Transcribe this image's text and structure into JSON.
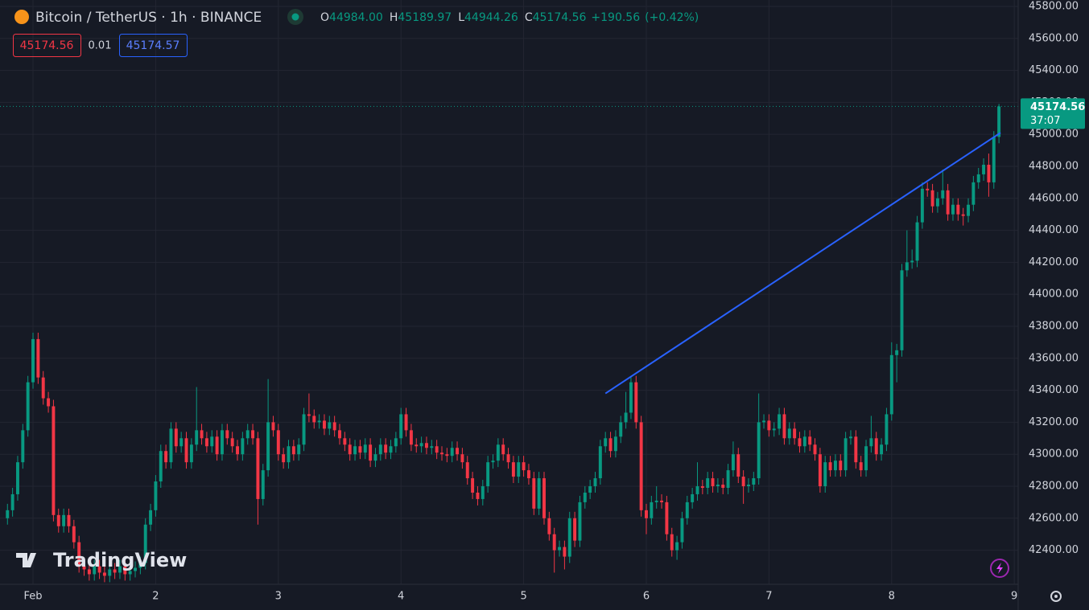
{
  "chart_data": {
    "type": "candlestick",
    "title": "Bitcoin / TetherUS · 1h · BINANCE",
    "legend": {
      "labels": [
        "O",
        "H",
        "L",
        "C"
      ],
      "values": [
        "44984.00",
        "45189.97",
        "44944.26",
        "45174.56"
      ],
      "change": "+190.56",
      "change_pct": "(+0.42%)"
    },
    "sell_price": "45174.56",
    "spread": "0.01",
    "buy_price": "45174.57",
    "countdown": "37:07",
    "watermark": "TradingView",
    "up_color": "#089981",
    "down_color": "#f23645",
    "trend_color": "#2962ff",
    "grid": true,
    "xlim": [
      -6.46,
      192.76
    ],
    "ylim": [
      42187,
      45840
    ],
    "xticks": [
      {
        "value": 0,
        "label": "Feb"
      },
      {
        "value": 24,
        "label": "2"
      },
      {
        "value": 48,
        "label": "3"
      },
      {
        "value": 72,
        "label": "4"
      },
      {
        "value": 96,
        "label": "5"
      },
      {
        "value": 120,
        "label": "6"
      },
      {
        "value": 144,
        "label": "7"
      },
      {
        "value": 168,
        "label": "8"
      },
      {
        "value": 192,
        "label": "9"
      }
    ],
    "yticks": [
      {
        "value": 45800,
        "label": "45800.00"
      },
      {
        "value": 45600,
        "label": "45600.00"
      },
      {
        "value": 45400,
        "label": "45400.00"
      },
      {
        "value": 45200,
        "label": "45200.00"
      },
      {
        "value": 45000,
        "label": "45000.00"
      },
      {
        "value": 44800,
        "label": "44800.00"
      },
      {
        "value": 44600,
        "label": "44600.00"
      },
      {
        "value": 44400,
        "label": "44400.00"
      },
      {
        "value": 44200,
        "label": "44200.00"
      },
      {
        "value": 44000,
        "label": "44000.00"
      },
      {
        "value": 43800,
        "label": "43800.00"
      },
      {
        "value": 43600,
        "label": "43600.00"
      },
      {
        "value": 43400,
        "label": "43400.00"
      },
      {
        "value": 43200,
        "label": "43200.00"
      },
      {
        "value": 43000,
        "label": "43000.00"
      },
      {
        "value": 42800,
        "label": "42800.00"
      },
      {
        "value": 42600,
        "label": "42600.00"
      },
      {
        "value": 42400,
        "label": "42400.00"
      }
    ],
    "trendline": {
      "x": [
        112,
        189.3
      ],
      "y": [
        43380,
        45010
      ]
    },
    "x": [
      -5,
      -4,
      -3,
      -2,
      -1,
      0,
      1,
      2,
      3,
      4,
      5,
      6,
      7,
      8,
      9,
      10,
      11,
      12,
      13,
      14,
      15,
      16,
      17,
      18,
      19,
      20,
      21,
      22,
      23,
      24,
      25,
      26,
      27,
      28,
      29,
      30,
      31,
      32,
      33,
      34,
      35,
      36,
      37,
      38,
      39,
      40,
      41,
      42,
      43,
      44,
      45,
      46,
      47,
      48,
      49,
      50,
      51,
      52,
      53,
      54,
      55,
      56,
      57,
      58,
      59,
      60,
      61,
      62,
      63,
      64,
      65,
      66,
      67,
      68,
      69,
      70,
      71,
      72,
      73,
      74,
      75,
      76,
      77,
      78,
      79,
      80,
      81,
      82,
      83,
      84,
      85,
      86,
      87,
      88,
      89,
      90,
      91,
      92,
      93,
      94,
      95,
      96,
      97,
      98,
      99,
      100,
      101,
      102,
      103,
      104,
      105,
      106,
      107,
      108,
      109,
      110,
      111,
      112,
      113,
      114,
      115,
      116,
      117,
      118,
      119,
      120,
      121,
      122,
      123,
      124,
      125,
      126,
      127,
      128,
      129,
      130,
      131,
      132,
      133,
      134,
      135,
      136,
      137,
      138,
      139,
      140,
      141,
      142,
      143,
      144,
      145,
      146,
      147,
      148,
      149,
      150,
      151,
      152,
      153,
      154,
      155,
      156,
      157,
      158,
      159,
      160,
      161,
      162,
      163,
      164,
      165,
      166,
      167,
      168,
      169,
      170,
      171,
      172,
      173,
      174,
      175,
      176,
      177,
      178,
      179,
      180,
      181,
      182,
      183,
      184,
      185,
      186,
      187,
      188,
      189
    ],
    "open": [
      42600,
      42650,
      42750,
      42950,
      43150,
      43450,
      43720,
      43480,
      43350,
      43300,
      42620,
      42550,
      42620,
      42550,
      42450,
      42300,
      42280,
      42250,
      42300,
      42260,
      42240,
      42280,
      42260,
      42300,
      42250,
      42270,
      42290,
      42320,
      42560,
      42650,
      42830,
      43020,
      42950,
      43160,
      43050,
      43100,
      42950,
      43060,
      43150,
      43100,
      43050,
      43110,
      43000,
      43150,
      43100,
      43050,
      43000,
      43100,
      43150,
      43100,
      42720,
      42900,
      43200,
      43150,
      43000,
      42950,
      43050,
      43000,
      43060,
      43250,
      43240,
      43200,
      43210,
      43160,
      43200,
      43150,
      43100,
      43060,
      43000,
      43050,
      43010,
      43060,
      42960,
      43000,
      43060,
      43010,
      43050,
      43100,
      43250,
      43150,
      43060,
      43050,
      43070,
      43040,
      43050,
      43010,
      43000,
      42990,
      43040,
      43000,
      42950,
      42850,
      42760,
      42720,
      42800,
      42950,
      42960,
      43060,
      43000,
      42950,
      42860,
      42950,
      42900,
      42850,
      42660,
      42850,
      42600,
      42500,
      42400,
      42420,
      42360,
      42600,
      42460,
      42700,
      42760,
      42800,
      42850,
      43050,
      43100,
      43020,
      43110,
      43200,
      43260,
      43450,
      43200,
      42650,
      42600,
      42700,
      42710,
      42700,
      42500,
      42400,
      42450,
      42600,
      42700,
      42750,
      42800,
      42790,
      42850,
      42800,
      42810,
      42790,
      42900,
      43000,
      42860,
      42800,
      42810,
      42850,
      43200,
      43210,
      43150,
      43160,
      43250,
      43100,
      43160,
      43100,
      43050,
      43110,
      43060,
      43000,
      42800,
      42950,
      42900,
      42960,
      42900,
      43100,
      43110,
      42950,
      42900,
      43050,
      43100,
      43000,
      43060,
      43250,
      43620,
      43650,
      44150,
      44200,
      44210,
      44450,
      44660,
      44650,
      44550,
      44600,
      44650,
      44500,
      44560,
      44500,
      44490,
      44560,
      44700,
      44750,
      44810,
      44700,
      44984
    ],
    "high": [
      42690,
      42790,
      42990,
      43190,
      43490,
      43760,
      43760,
      43520,
      43390,
      43340,
      42660,
      42660,
      42660,
      42590,
      42490,
      42340,
      42320,
      42340,
      42340,
      42300,
      42320,
      42320,
      42340,
      42340,
      42310,
      42330,
      42360,
      42600,
      42690,
      42870,
      43060,
      43060,
      43200,
      43200,
      43140,
      43140,
      43100,
      43420,
      43190,
      43140,
      43150,
      43150,
      43190,
      43190,
      43140,
      43090,
      43140,
      43190,
      43190,
      43140,
      42940,
      43470,
      43240,
      43190,
      43040,
      43090,
      43090,
      43100,
      43290,
      43380,
      43280,
      43250,
      43250,
      43240,
      43240,
      43190,
      43140,
      43100,
      43090,
      43090,
      43100,
      43100,
      43040,
      43100,
      43100,
      43090,
      43140,
      43290,
      43290,
      43190,
      43100,
      43110,
      43110,
      43090,
      43090,
      43050,
      43040,
      43080,
      43080,
      43040,
      42990,
      42890,
      42800,
      42840,
      42990,
      43000,
      43100,
      43100,
      43040,
      42990,
      42990,
      42990,
      42940,
      42890,
      42890,
      42890,
      42640,
      42540,
      42460,
      42460,
      42640,
      42640,
      42740,
      42800,
      42840,
      42890,
      43090,
      43140,
      43140,
      43150,
      43240,
      43390,
      43490,
      43490,
      43240,
      42690,
      42740,
      42800,
      42750,
      42740,
      42540,
      42490,
      42640,
      42740,
      42790,
      42950,
      42840,
      42890,
      42890,
      42850,
      42850,
      42940,
      43080,
      43040,
      42900,
      42850,
      42890,
      43380,
      43250,
      43250,
      43200,
      43290,
      43290,
      43200,
      43200,
      43140,
      43150,
      43150,
      43100,
      43040,
      42990,
      42990,
      43000,
      43000,
      43140,
      43150,
      43150,
      42990,
      43090,
      43240,
      43140,
      43100,
      43290,
      43700,
      43690,
      44190,
      44400,
      44280,
      44490,
      44700,
      44700,
      44690,
      44640,
      44780,
      44690,
      44600,
      44600,
      44540,
      44600,
      44740,
      44790,
      44850,
      44880,
      45020,
      45189.97
    ],
    "low": [
      42560,
      42610,
      42710,
      42910,
      43110,
      43410,
      43440,
      43310,
      43260,
      42580,
      42510,
      42510,
      42510,
      42410,
      42260,
      42240,
      42210,
      42210,
      42220,
      42200,
      42200,
      42220,
      42220,
      42210,
      42210,
      42230,
      42250,
      42280,
      42520,
      42610,
      42790,
      42910,
      42910,
      43010,
      43010,
      42910,
      42910,
      43020,
      43060,
      43010,
      43010,
      42960,
      42960,
      43060,
      43010,
      42960,
      42960,
      43060,
      43060,
      42560,
      42680,
      42860,
      43110,
      42960,
      42910,
      42910,
      42960,
      42960,
      43020,
      43200,
      43160,
      43160,
      43120,
      43120,
      43110,
      43060,
      43020,
      42960,
      42960,
      42970,
      42970,
      42920,
      42920,
      42960,
      42970,
      42970,
      43010,
      43060,
      43110,
      43020,
      43010,
      43010,
      43000,
      43000,
      42970,
      42960,
      42950,
      42950,
      42960,
      42910,
      42810,
      42720,
      42680,
      42680,
      42760,
      42910,
      42920,
      42960,
      42910,
      42820,
      42820,
      42860,
      42810,
      42620,
      42620,
      42560,
      42460,
      42260,
      42360,
      42280,
      42320,
      42420,
      42420,
      42660,
      42720,
      42760,
      42810,
      43010,
      42980,
      42980,
      43070,
      43160,
      43220,
      43160,
      42610,
      42500,
      42560,
      42660,
      42660,
      42460,
      42360,
      42340,
      42410,
      42560,
      42660,
      42710,
      42750,
      42750,
      42760,
      42760,
      42750,
      42750,
      42860,
      42820,
      42690,
      42760,
      42770,
      42810,
      43160,
      43110,
      43110,
      43120,
      43060,
      43060,
      43060,
      43010,
      43010,
      43020,
      42960,
      42760,
      42760,
      42860,
      42860,
      42860,
      42860,
      43060,
      42910,
      42860,
      42860,
      43010,
      42960,
      42960,
      43020,
      43210,
      43450,
      43610,
      44110,
      44160,
      44170,
      44410,
      44610,
      44510,
      44510,
      44560,
      44460,
      44460,
      44460,
      44430,
      44450,
      44520,
      44660,
      44710,
      44610,
      44660,
      44944.26
    ],
    "close": [
      42650,
      42750,
      42950,
      43150,
      43450,
      43720,
      43480,
      43350,
      43300,
      42620,
      42550,
      42620,
      42550,
      42450,
      42300,
      42280,
      42250,
      42300,
      42260,
      42240,
      42280,
      42260,
      42300,
      42250,
      42270,
      42290,
      42320,
      42560,
      42650,
      42830,
      43020,
      42950,
      43160,
      43050,
      43100,
      42950,
      43060,
      43150,
      43100,
      43050,
      43110,
      43000,
      43150,
      43100,
      43050,
      43000,
      43100,
      43150,
      43100,
      42720,
      42900,
      43200,
      43150,
      43000,
      42950,
      43050,
      43000,
      43060,
      43250,
      43240,
      43200,
      43210,
      43160,
      43200,
      43150,
      43100,
      43060,
      43000,
      43050,
      43010,
      43060,
      42960,
      43000,
      43060,
      43010,
      43050,
      43100,
      43250,
      43150,
      43060,
      43050,
      43070,
      43040,
      43050,
      43010,
      43000,
      42990,
      43040,
      43000,
      42950,
      42850,
      42760,
      42720,
      42800,
      42950,
      42960,
      43060,
      43000,
      42950,
      42860,
      42950,
      42900,
      42850,
      42660,
      42850,
      42600,
      42500,
      42400,
      42420,
      42360,
      42600,
      42460,
      42700,
      42760,
      42800,
      42850,
      43050,
      43100,
      43020,
      43110,
      43200,
      43260,
      43450,
      43200,
      42650,
      42600,
      42700,
      42710,
      42700,
      42500,
      42400,
      42450,
      42600,
      42700,
      42750,
      42800,
      42790,
      42850,
      42800,
      42810,
      42790,
      42900,
      43000,
      42860,
      42800,
      42810,
      42850,
      43200,
      43210,
      43150,
      43160,
      43250,
      43100,
      43160,
      43100,
      43050,
      43110,
      43060,
      43000,
      42800,
      42950,
      42900,
      42960,
      42900,
      43100,
      43110,
      42950,
      42900,
      43050,
      43100,
      43000,
      43060,
      43250,
      43620,
      43650,
      44150,
      44200,
      44210,
      44450,
      44660,
      44650,
      44550,
      44600,
      44650,
      44500,
      44560,
      44500,
      44490,
      44560,
      44700,
      44750,
      44810,
      44700,
      44984,
      45174.56
    ]
  }
}
